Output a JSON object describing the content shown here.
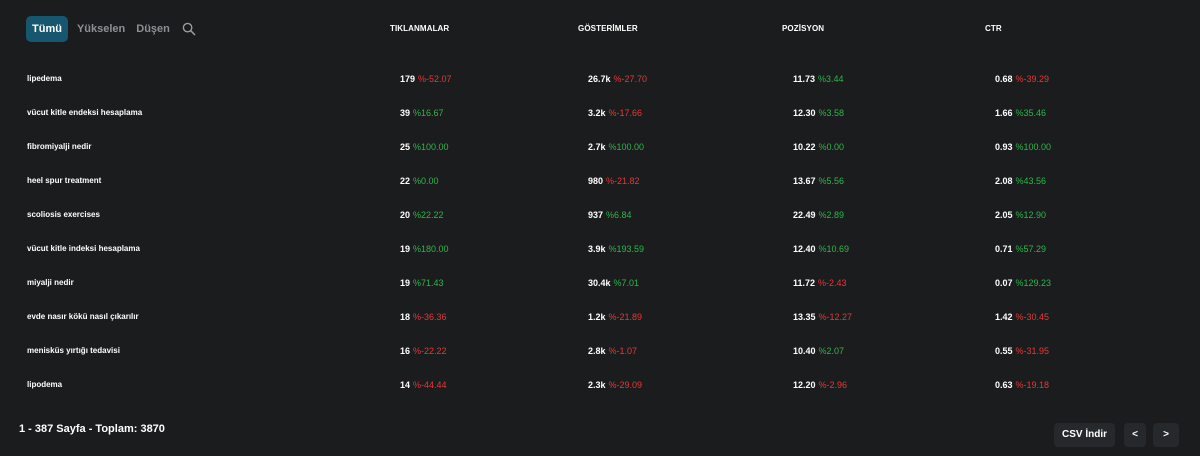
{
  "filters": {
    "all": "Tümü",
    "rising": "Yükselen",
    "falling": "Düşen",
    "active": "all",
    "search_icon": "search-icon"
  },
  "columns": {
    "clicks": "TIKLANMALAR",
    "impressions": "GÖSTERİMLER",
    "position": "POZİSYON",
    "ctr": "CTR"
  },
  "rows": [
    {
      "keyword": "lipedema",
      "clicks": "179",
      "clicks_change": "%-52.07",
      "impressions": "26.7k",
      "impressions_change": "%-27.70",
      "position": "11.73",
      "position_change": "%3.44",
      "ctr": "0.68",
      "ctr_change": "%-39.29"
    },
    {
      "keyword": "vücut kitle endeksi hesaplama",
      "clicks": "39",
      "clicks_change": "%16.67",
      "impressions": "3.2k",
      "impressions_change": "%-17.66",
      "position": "12.30",
      "position_change": "%3.58",
      "ctr": "1.66",
      "ctr_change": "%35.46"
    },
    {
      "keyword": "fibromiyalji nedir",
      "clicks": "25",
      "clicks_change": "%100.00",
      "impressions": "2.7k",
      "impressions_change": "%100.00",
      "position": "10.22",
      "position_change": "%0.00",
      "ctr": "0.93",
      "ctr_change": "%100.00"
    },
    {
      "keyword": "heel spur treatment",
      "clicks": "22",
      "clicks_change": "%0.00",
      "impressions": "980",
      "impressions_change": "%-21.82",
      "position": "13.67",
      "position_change": "%5.56",
      "ctr": "2.08",
      "ctr_change": "%43.56"
    },
    {
      "keyword": "scoliosis exercises",
      "clicks": "20",
      "clicks_change": "%22.22",
      "impressions": "937",
      "impressions_change": "%6.84",
      "position": "22.49",
      "position_change": "%2.89",
      "ctr": "2.05",
      "ctr_change": "%12.90"
    },
    {
      "keyword": "vücut kitle indeksi hesaplama",
      "clicks": "19",
      "clicks_change": "%180.00",
      "impressions": "3.9k",
      "impressions_change": "%193.59",
      "position": "12.40",
      "position_change": "%10.69",
      "ctr": "0.71",
      "ctr_change": "%57.29"
    },
    {
      "keyword": "miyalji nedir",
      "clicks": "19",
      "clicks_change": "%71.43",
      "impressions": "30.4k",
      "impressions_change": "%7.01",
      "position": "11.72",
      "position_change": "%-2.43",
      "ctr": "0.07",
      "ctr_change": "%129.23"
    },
    {
      "keyword": "evde nasır kökü nasıl çıkarılır",
      "clicks": "18",
      "clicks_change": "%-36.36",
      "impressions": "1.2k",
      "impressions_change": "%-21.89",
      "position": "13.35",
      "position_change": "%-12.27",
      "ctr": "1.42",
      "ctr_change": "%-30.45"
    },
    {
      "keyword": "menisküs yırtığı tedavisi",
      "clicks": "16",
      "clicks_change": "%-22.22",
      "impressions": "2.8k",
      "impressions_change": "%-1.07",
      "position": "10.40",
      "position_change": "%2.07",
      "ctr": "0.55",
      "ctr_change": "%-31.95"
    },
    {
      "keyword": "lipodema",
      "clicks": "14",
      "clicks_change": "%-44.44",
      "impressions": "2.3k",
      "impressions_change": "%-29.09",
      "position": "12.20",
      "position_change": "%-2.96",
      "ctr": "0.63",
      "ctr_change": "%-19.18"
    }
  ],
  "footer": {
    "page_info": "1 - 387 Sayfa - Toplam: 3870",
    "csv_label": "CSV İndir",
    "prev_label": "<",
    "next_label": ">"
  },
  "colors": {
    "background": "#1b1c1d",
    "accent": "#17566f",
    "positive": "#2fb64b",
    "negative": "#e23a3a",
    "button_bg": "#26292c"
  }
}
